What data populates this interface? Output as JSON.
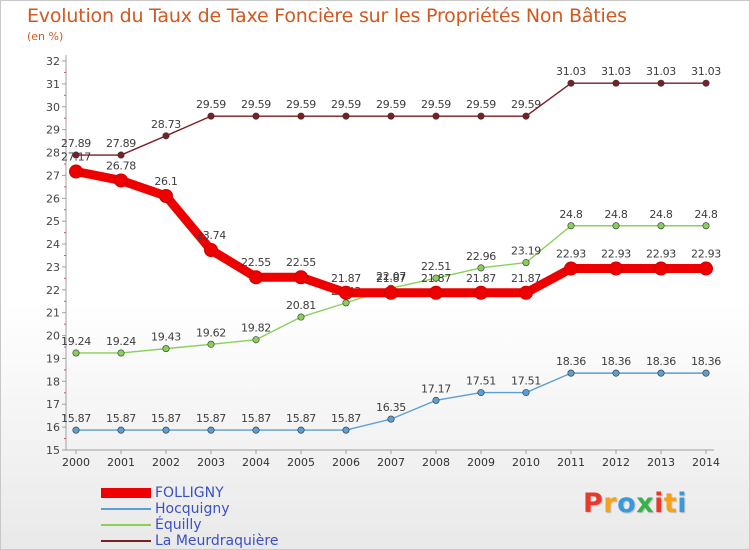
{
  "title": "Evolution du Taux de Taxe Foncière sur les Propriétés Non Bâties",
  "subtitle": "(en %)",
  "logo": {
    "text": "Proxiti",
    "colors": [
      "#e8392b",
      "#f5a21b",
      "#3a9ad9",
      "#37b34a",
      "#e8392b",
      "#f5a21b",
      "#3a9ad9"
    ]
  },
  "chart_data": {
    "type": "line",
    "x": [
      "2000",
      "2001",
      "2002",
      "2003",
      "2004",
      "2005",
      "2006",
      "2007",
      "2008",
      "2009",
      "2010",
      "2011",
      "2012",
      "2013",
      "2014"
    ],
    "ylim": [
      15,
      32
    ],
    "yticks": [
      "15",
      "16",
      "17",
      "18",
      "19",
      "20",
      "21",
      "22",
      "23",
      "24",
      "25",
      "26",
      "27",
      "28",
      "29",
      "30",
      "31",
      "32"
    ],
    "grid": false,
    "legend_position": "bottom-left",
    "series": [
      {
        "name": "La Meurdraquière",
        "color": "#7a1f24",
        "values": [
          27.89,
          27.89,
          28.73,
          29.59,
          29.59,
          29.59,
          29.59,
          29.59,
          29.59,
          29.59,
          29.59,
          31.03,
          31.03,
          31.03,
          31.03
        ],
        "labels": [
          "27.89",
          "27.89",
          "28.73",
          "29.59",
          "29.59",
          "29.59",
          "29.59",
          "29.59",
          "29.59",
          "29.59",
          "29.59",
          "31.03",
          "31.03",
          "31.03",
          "31.03"
        ]
      },
      {
        "name": "Équilly",
        "color": "#88d05a",
        "values": [
          19.24,
          19.24,
          19.43,
          19.62,
          19.82,
          20.81,
          21.43,
          22.07,
          22.51,
          22.96,
          23.19,
          24.8,
          24.8,
          24.8,
          24.8
        ],
        "labels": [
          "19.24",
          "19.24",
          "19.43",
          "19.62",
          "19.82",
          "20.81",
          "21.43",
          "22.07",
          "22.51",
          "22.96",
          "23.19",
          "24.8",
          "24.8",
          "24.8",
          "24.8"
        ]
      },
      {
        "name": "Hocquigny",
        "color": "#5b9fd4",
        "values": [
          15.87,
          15.87,
          15.87,
          15.87,
          15.87,
          15.87,
          15.87,
          16.35,
          17.17,
          17.51,
          17.51,
          18.36,
          18.36,
          18.36,
          18.36
        ],
        "labels": [
          "15.87",
          "15.87",
          "15.87",
          "15.87",
          "15.87",
          "15.87",
          "15.87",
          "16.35",
          "17.17",
          "17.51",
          "17.51",
          "18.36",
          "18.36",
          "18.36",
          "18.36"
        ]
      },
      {
        "name": "FOLLIGNY",
        "color": "#ee0000",
        "values": [
          27.17,
          26.78,
          26.1,
          23.74,
          22.55,
          22.55,
          21.87,
          21.87,
          21.87,
          21.87,
          21.87,
          22.93,
          22.93,
          22.93,
          22.93
        ],
        "labels": [
          "27.17",
          "26.78",
          "26.1",
          "23.74",
          "22.55",
          "22.55",
          "21.87",
          "21.87",
          "21.87",
          "21.87",
          "21.87",
          "22.93",
          "22.93",
          "22.93",
          "22.93"
        ]
      }
    ]
  },
  "legend": [
    {
      "label": "FOLLIGNY",
      "color": "#ee0000",
      "thick": true
    },
    {
      "label": "Hocquigny",
      "color": "#5b9fd4",
      "thick": false
    },
    {
      "label": "Équilly",
      "color": "#88d05a",
      "thick": false
    },
    {
      "label": "La Meurdraquière",
      "color": "#7a1f24",
      "thick": false
    }
  ]
}
